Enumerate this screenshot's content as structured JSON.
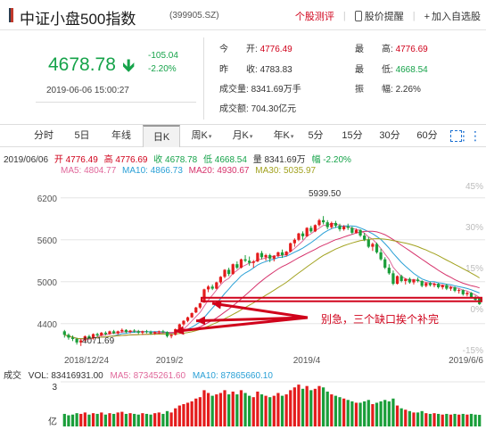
{
  "header": {
    "title": "中证小盘500指数",
    "code": "(399905.SZ)",
    "actions": {
      "rating": "个股测评",
      "alert": "股价提醒",
      "watch": "加入自选股"
    }
  },
  "quote": {
    "price": "4678.78",
    "change": "-105.04",
    "change_pct": "-2.20%",
    "time": "2019-06-06 15:00:27",
    "fields": [
      {
        "label": "今　　开:",
        "value": "4776.49",
        "tone": "red"
      },
      {
        "label": "最　　高:",
        "value": "4776.69",
        "tone": "red"
      },
      {
        "label": "昨　　收:",
        "value": "4783.83",
        "tone": "plain"
      },
      {
        "label": "最　　低:",
        "value": "4668.54",
        "tone": "green"
      },
      {
        "label": "成交量:",
        "value": "8341.69万手",
        "tone": "plain"
      },
      {
        "label": "振　　幅:",
        "value": "2.26%",
        "tone": "plain"
      },
      {
        "label": "成交额:",
        "value": "704.30亿元",
        "tone": "plain"
      }
    ]
  },
  "tabs": [
    {
      "label": "分时",
      "dd": ""
    },
    {
      "label": "5日",
      "dd": ""
    },
    {
      "label": "年线",
      "dd": ""
    },
    {
      "label": "日K",
      "dd": ""
    },
    {
      "label": "周K",
      "dd": "▾"
    },
    {
      "label": "月K",
      "dd": "▾"
    },
    {
      "label": "年K",
      "dd": "▾"
    },
    {
      "label": "5分",
      "dd": ""
    },
    {
      "label": "15分",
      "dd": ""
    },
    {
      "label": "30分",
      "dd": ""
    },
    {
      "label": "60分",
      "dd": ""
    }
  ],
  "active_tab": "日K",
  "kline_info": {
    "date": "2019/06/06",
    "open": "开 4776.49",
    "high": "高 4776.69",
    "close": "收 4678.78",
    "low": "低 4668.54",
    "volume": "量 8341.69万",
    "change": "幅 -2.20%",
    "ma5": "MA5: 4804.77",
    "ma10": "MA10: 4866.73",
    "ma20": "MA20: 4930.67",
    "ma30": "MA30: 5035.97"
  },
  "vol_info": {
    "label": "成交",
    "vol": "VOL: 83416931.00",
    "ma5": "MA5: 87345261.60",
    "ma10": "MA10: 87865660.10"
  },
  "annotation": "别急，三个缺口挨个补完",
  "colors": {
    "up": "#e41c1c",
    "down": "#1a9e3a",
    "ma5": "#e0679a",
    "ma10": "#2aa0d6",
    "ma20": "#d6336c",
    "ma30": "#a2a21f",
    "accent": "#d0021b"
  },
  "chart_data": {
    "type": "candlestick",
    "y_ticks": [
      "6200",
      "5600",
      "5000",
      "4400"
    ],
    "y_tick_values": [
      6200,
      5600,
      5000,
      4400
    ],
    "pct_ticks": [
      "45%",
      "30%",
      "15%",
      "0%",
      "-15%"
    ],
    "x_ticks": [
      "2018/12/24",
      "2019/2",
      "2019/4",
      "2019/6/6"
    ],
    "ylim": [
      3950,
      6350
    ],
    "annotations": {
      "high_label": "5939.50",
      "low_label": "4071.69"
    },
    "vol_axis": {
      "top_label": "3",
      "bottom_label": "亿"
    },
    "candles": [
      [
        4290,
        4310,
        4200,
        4240
      ],
      [
        4240,
        4260,
        4170,
        4200
      ],
      [
        4200,
        4230,
        4150,
        4180
      ],
      [
        4180,
        4200,
        4100,
        4130
      ],
      [
        4130,
        4180,
        4080,
        4160
      ],
      [
        4160,
        4230,
        4140,
        4220
      ],
      [
        4220,
        4240,
        4180,
        4190
      ],
      [
        4190,
        4260,
        4170,
        4250
      ],
      [
        4250,
        4270,
        4210,
        4230
      ],
      [
        4230,
        4280,
        4220,
        4270
      ],
      [
        4270,
        4290,
        4230,
        4250
      ],
      [
        4250,
        4300,
        4240,
        4290
      ],
      [
        4290,
        4310,
        4250,
        4260
      ],
      [
        4260,
        4300,
        4240,
        4290
      ],
      [
        4290,
        4330,
        4270,
        4310
      ],
      [
        4310,
        4320,
        4260,
        4280
      ],
      [
        4280,
        4310,
        4260,
        4300
      ],
      [
        4300,
        4320,
        4270,
        4290
      ],
      [
        4290,
        4310,
        4250,
        4270
      ],
      [
        4270,
        4300,
        4240,
        4290
      ],
      [
        4290,
        4310,
        4260,
        4280
      ],
      [
        4280,
        4300,
        4240,
        4260
      ],
      [
        4260,
        4290,
        4240,
        4280
      ],
      [
        4280,
        4300,
        4250,
        4290
      ],
      [
        4290,
        4310,
        4260,
        4280
      ],
      [
        4280,
        4290,
        4200,
        4220
      ],
      [
        4220,
        4250,
        4190,
        4240
      ],
      [
        4240,
        4330,
        4230,
        4320
      ],
      [
        4320,
        4400,
        4310,
        4390
      ],
      [
        4390,
        4450,
        4370,
        4440
      ],
      [
        4440,
        4500,
        4420,
        4490
      ],
      [
        4490,
        4560,
        4480,
        4550
      ],
      [
        4560,
        4640,
        4550,
        4630
      ],
      [
        4630,
        4700,
        4610,
        4690
      ],
      [
        4700,
        4900,
        4700,
        4890
      ],
      [
        4890,
        4950,
        4850,
        4930
      ],
      [
        4930,
        4960,
        4880,
        4900
      ],
      [
        4900,
        5000,
        4890,
        4990
      ],
      [
        4990,
        5080,
        4970,
        5070
      ],
      [
        5070,
        5180,
        5050,
        5170
      ],
      [
        5170,
        5200,
        5080,
        5110
      ],
      [
        5110,
        5260,
        5100,
        5250
      ],
      [
        5250,
        5290,
        5180,
        5200
      ],
      [
        5200,
        5330,
        5190,
        5320
      ],
      [
        5320,
        5380,
        5280,
        5300
      ],
      [
        5300,
        5360,
        5230,
        5270
      ],
      [
        5270,
        5310,
        5200,
        5290
      ],
      [
        5290,
        5420,
        5280,
        5410
      ],
      [
        5410,
        5440,
        5320,
        5350
      ],
      [
        5350,
        5400,
        5300,
        5380
      ],
      [
        5380,
        5400,
        5280,
        5330
      ],
      [
        5330,
        5380,
        5290,
        5370
      ],
      [
        5370,
        5430,
        5350,
        5420
      ],
      [
        5420,
        5460,
        5340,
        5380
      ],
      [
        5380,
        5440,
        5360,
        5430
      ],
      [
        5430,
        5560,
        5420,
        5550
      ],
      [
        5550,
        5620,
        5500,
        5600
      ],
      [
        5600,
        5700,
        5580,
        5690
      ],
      [
        5690,
        5720,
        5600,
        5650
      ],
      [
        5650,
        5780,
        5640,
        5770
      ],
      [
        5770,
        5800,
        5700,
        5720
      ],
      [
        5720,
        5820,
        5710,
        5810
      ],
      [
        5810,
        5900,
        5790,
        5880
      ],
      [
        5880,
        5939,
        5820,
        5850
      ],
      [
        5850,
        5880,
        5750,
        5780
      ],
      [
        5780,
        5860,
        5760,
        5840
      ],
      [
        5840,
        5870,
        5770,
        5800
      ],
      [
        5800,
        5830,
        5720,
        5750
      ],
      [
        5750,
        5810,
        5730,
        5790
      ],
      [
        5790,
        5830,
        5740,
        5770
      ],
      [
        5770,
        5790,
        5680,
        5700
      ],
      [
        5700,
        5760,
        5690,
        5740
      ],
      [
        5740,
        5750,
        5640,
        5660
      ],
      [
        5660,
        5700,
        5580,
        5600
      ],
      [
        5600,
        5640,
        5480,
        5500
      ],
      [
        5500,
        5560,
        5440,
        5540
      ],
      [
        5540,
        5560,
        5400,
        5420
      ],
      [
        5420,
        5470,
        5300,
        5320
      ],
      [
        5320,
        5350,
        5180,
        5200
      ],
      [
        5200,
        5250,
        5100,
        5120
      ],
      [
        5120,
        5160,
        4950,
        4970
      ],
      [
        4970,
        5090,
        4960,
        5080
      ],
      [
        5080,
        5100,
        4990,
        5010
      ],
      [
        5010,
        5050,
        4960,
        5040
      ],
      [
        5040,
        5060,
        4970,
        4990
      ],
      [
        4990,
        5040,
        4960,
        5030
      ],
      [
        5030,
        5060,
        4990,
        5010
      ],
      [
        5010,
        5020,
        4920,
        4940
      ],
      [
        4940,
        4990,
        4920,
        4980
      ],
      [
        4980,
        5000,
        4930,
        4950
      ],
      [
        4950,
        4990,
        4920,
        4970
      ],
      [
        4970,
        4980,
        4900,
        4920
      ],
      [
        4920,
        4960,
        4890,
        4950
      ],
      [
        4950,
        4970,
        4880,
        4900
      ],
      [
        4900,
        4940,
        4870,
        4920
      ],
      [
        4920,
        4930,
        4850,
        4870
      ],
      [
        4870,
        4900,
        4830,
        4880
      ],
      [
        4880,
        4890,
        4800,
        4820
      ],
      [
        4820,
        4860,
        4790,
        4840
      ],
      [
        4840,
        4850,
        4760,
        4780
      ],
      [
        4780,
        4800,
        4720,
        4740
      ],
      [
        4776,
        4777,
        4668,
        4679
      ]
    ],
    "volumes": [
      0.9,
      0.8,
      0.85,
      0.95,
      0.9,
      1.0,
      0.85,
      0.95,
      0.9,
      1.0,
      0.85,
      0.95,
      0.9,
      1.0,
      1.05,
      0.9,
      0.95,
      0.9,
      0.85,
      0.95,
      0.9,
      0.85,
      0.95,
      1.0,
      0.9,
      1.1,
      1.0,
      1.3,
      1.5,
      1.6,
      1.7,
      1.8,
      2.0,
      2.1,
      2.6,
      2.4,
      2.2,
      2.3,
      2.4,
      2.6,
      2.3,
      2.5,
      2.3,
      2.6,
      2.4,
      2.2,
      2.1,
      2.5,
      2.3,
      2.2,
      2.1,
      2.2,
      2.4,
      2.2,
      2.3,
      2.6,
      2.8,
      3.0,
      2.7,
      2.9,
      2.6,
      2.7,
      2.9,
      2.8,
      2.5,
      2.3,
      2.2,
      2.1,
      2.0,
      1.9,
      1.8,
      1.7,
      1.7,
      1.8,
      1.9,
      1.6,
      1.7,
      1.8,
      1.9,
      1.8,
      2.0,
      1.5,
      1.3,
      1.2,
      1.1,
      1.0,
      1.0,
      1.1,
      0.95,
      0.9,
      0.95,
      0.9,
      0.85,
      0.9,
      0.85,
      0.9,
      0.85,
      0.9,
      0.85,
      0.9,
      0.85,
      0.83
    ],
    "gap_levels": [
      4690,
      4440,
      4290
    ],
    "gap_band": [
      4720,
      4770
    ]
  }
}
